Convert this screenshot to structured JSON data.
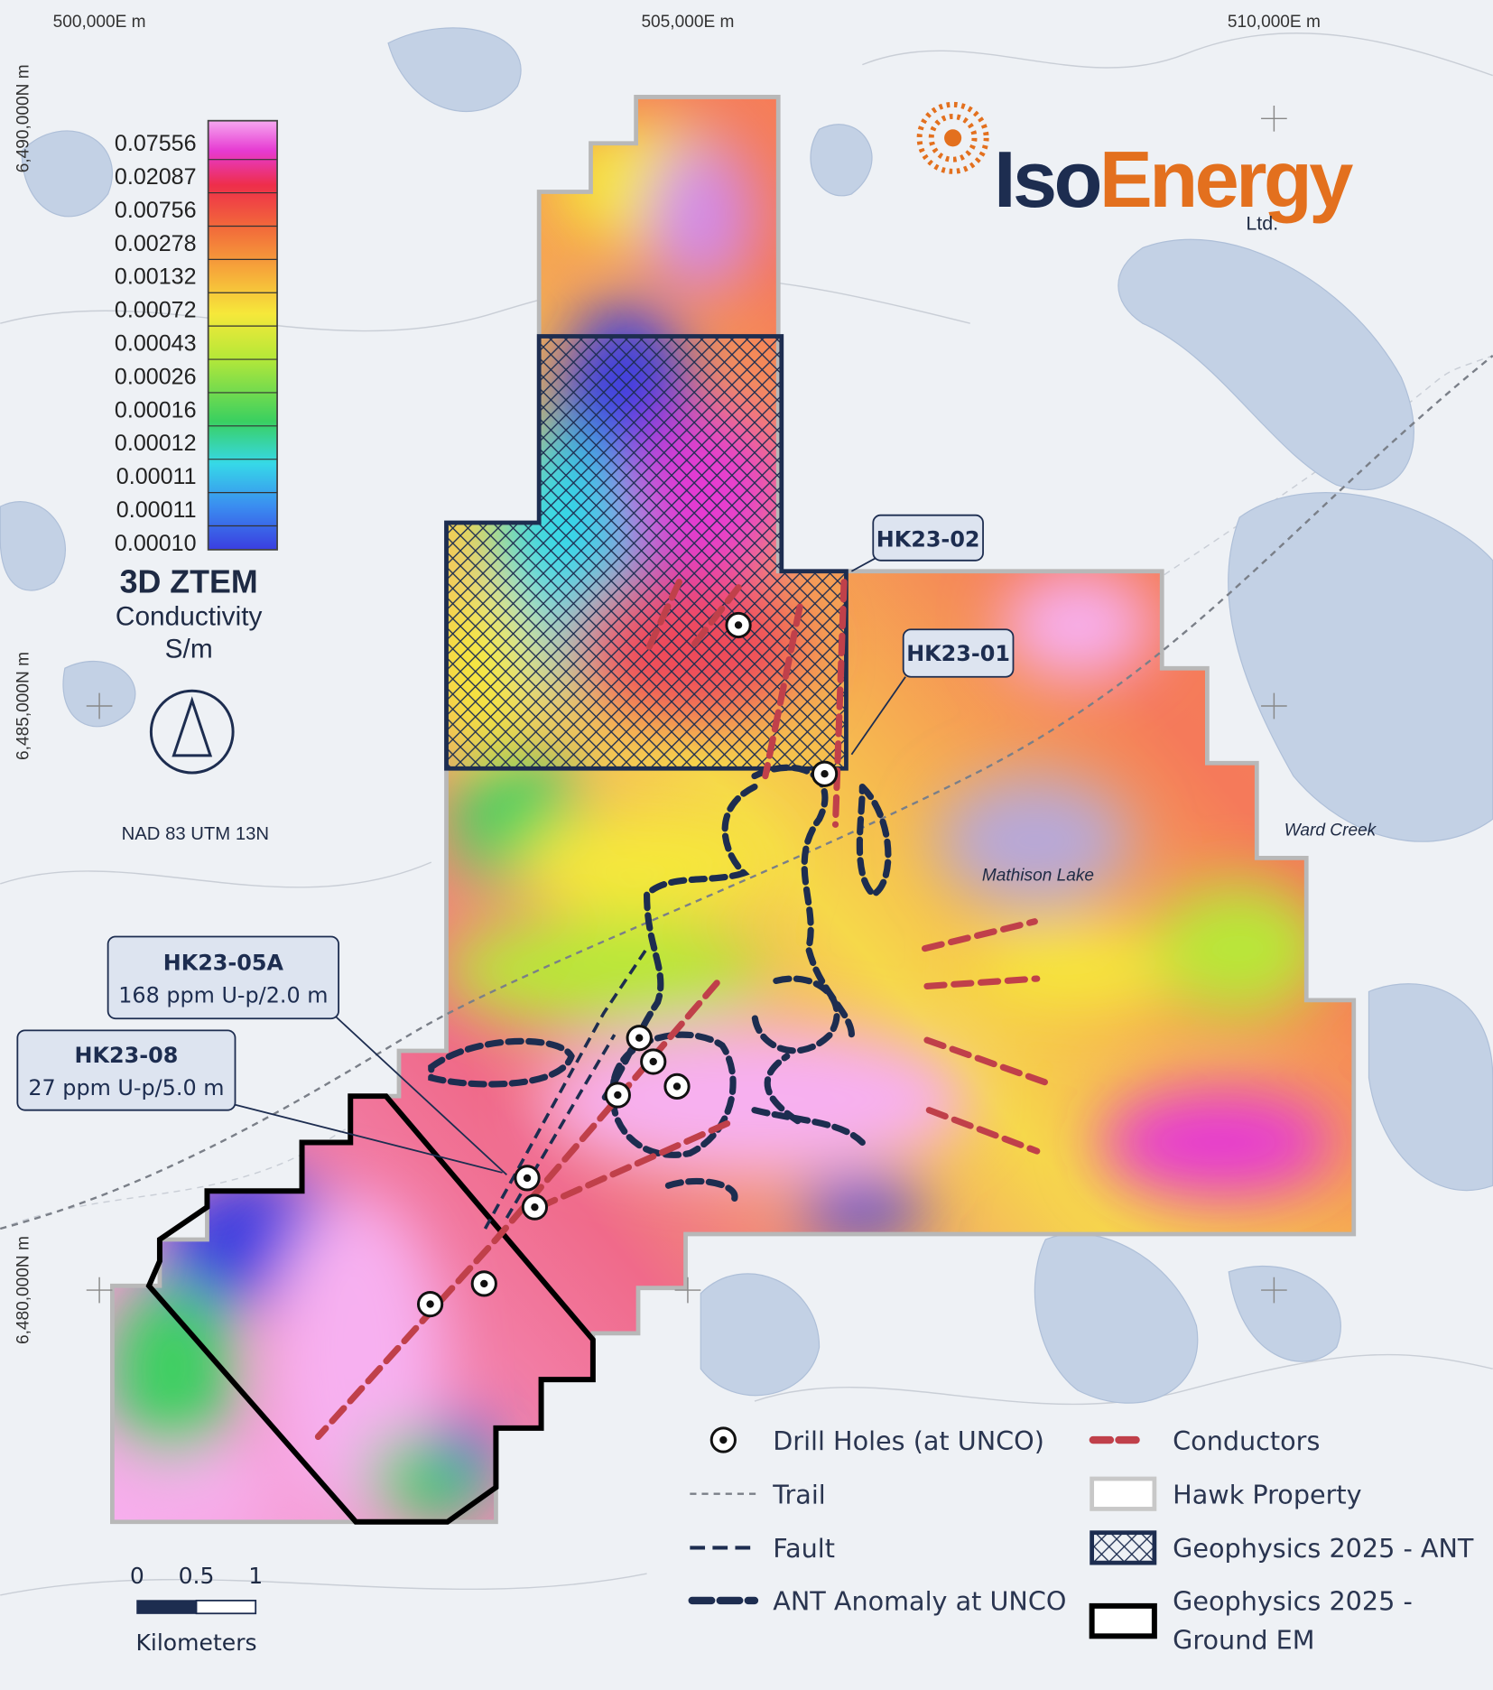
{
  "grid_labels": {
    "easting": [
      "500,000E m",
      "505,000E m",
      "510,000E m"
    ],
    "northing": [
      "6,490,000N m",
      "6,485,000N m",
      "6,480,000N m"
    ]
  },
  "color_scale": {
    "labels": [
      "0.07556",
      "0.02087",
      "0.00756",
      "0.00278",
      "0.00132",
      "0.00072",
      "0.00043",
      "0.00026",
      "0.00016",
      "0.00012",
      "0.00011",
      "0.00011",
      "0.00010"
    ],
    "title": "3D ZTEM",
    "quantity": "Conductivity",
    "unit": "S/m"
  },
  "datum": "NAD 83 UTM 13N",
  "logo": {
    "part1": "Iso",
    "part2": "Energy",
    "suffix": "Ltd."
  },
  "place_labels": [
    "Mathison Lake",
    "Ward Creek"
  ],
  "callouts": [
    {
      "label": "HK23-02"
    },
    {
      "label": "HK23-01"
    },
    {
      "label": "HK23-05A",
      "detail": "168 ppm U-p/2.0 m"
    },
    {
      "label": "HK23-08",
      "detail": "27 ppm U-p/5.0 m"
    }
  ],
  "legend": [
    "Drill Holes (at UNCO)",
    "Trail",
    "Fault",
    "ANT Anomaly at UNCO",
    "Conductors",
    "Hawk Property",
    "Geophysics 2025 - ANT",
    [
      "Geophysics 2025 -",
      "Ground EM"
    ]
  ],
  "scale_bar": {
    "ticks": [
      "0",
      "0.5",
      "1"
    ],
    "unit": "Kilometers"
  }
}
